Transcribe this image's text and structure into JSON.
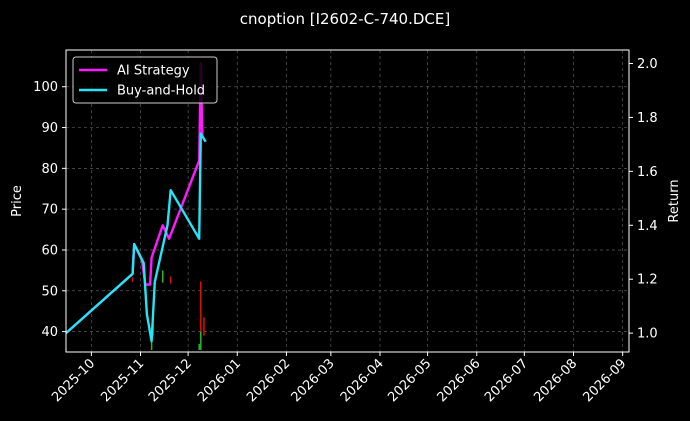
{
  "chart_data": {
    "type": "line",
    "title": "cnoption [I2602-C-740.DCE]",
    "ylabel_left": "Price",
    "ylabel_right": "Return",
    "background": "#000000",
    "grid": true,
    "legend_position": "top-left",
    "x_ticks": [
      "2025-10",
      "2025-11",
      "2025-12",
      "2026-01",
      "2026-02",
      "2026-03",
      "2026-04",
      "2026-05",
      "2026-06",
      "2026-07",
      "2026-08",
      "2026-09"
    ],
    "xlim": [
      "2025-09-15",
      "2026-09-05"
    ],
    "left_axis": {
      "ylim": [
        35,
        109
      ],
      "ticks": [
        40,
        50,
        60,
        70,
        80,
        90,
        100
      ]
    },
    "right_axis": {
      "ylim": [
        0.93,
        2.05
      ],
      "ticks": [
        1.0,
        1.2,
        1.4,
        1.6,
        1.8,
        2.0
      ]
    },
    "series": [
      {
        "name": "AI Strategy",
        "color": "#ff1aff",
        "axis": "right",
        "points": [
          [
            "2025-09-15",
            1.0
          ],
          [
            "2025-10-27",
            1.22
          ],
          [
            "2025-10-28",
            1.33
          ],
          [
            "2025-11-02",
            1.27
          ],
          [
            "2025-11-04",
            1.18
          ],
          [
            "2025-11-07",
            1.18
          ],
          [
            "2025-11-08",
            1.28
          ],
          [
            "2025-11-15",
            1.4
          ],
          [
            "2025-11-19",
            1.35
          ],
          [
            "2025-12-08",
            1.64
          ],
          [
            "2025-12-09",
            2.0
          ],
          [
            "2025-12-10",
            1.73
          ],
          [
            "2025-12-12",
            1.71
          ]
        ]
      },
      {
        "name": "Buy-and-Hold",
        "color": "#22e5f5",
        "axis": "right",
        "points": [
          [
            "2025-09-15",
            1.0
          ],
          [
            "2025-10-27",
            1.22
          ],
          [
            "2025-10-28",
            1.33
          ],
          [
            "2025-11-03",
            1.26
          ],
          [
            "2025-11-05",
            1.07
          ],
          [
            "2025-11-08",
            0.97
          ],
          [
            "2025-11-10",
            1.19
          ],
          [
            "2025-11-18",
            1.4
          ],
          [
            "2025-11-20",
            1.53
          ],
          [
            "2025-12-08",
            1.35
          ],
          [
            "2025-12-09",
            1.74
          ],
          [
            "2025-12-10",
            1.73
          ],
          [
            "2025-12-12",
            1.71
          ]
        ]
      }
    ],
    "signal_bars": [
      {
        "color": "#dd1111",
        "axis": "left",
        "items": [
          [
            "2025-10-27",
            52.2,
            53.3
          ],
          [
            "2025-11-09",
            39.0,
            42.0
          ],
          [
            "2025-11-15",
            52.0,
            54.0
          ],
          [
            "2025-11-20",
            51.8,
            53.5
          ],
          [
            "2025-12-09",
            39.0,
            52.3
          ],
          [
            "2025-12-11",
            39.0,
            43.5
          ]
        ]
      },
      {
        "color": "#22bb22",
        "axis": "left",
        "items": [
          [
            "2025-11-08",
            35.5,
            41.0
          ],
          [
            "2025-11-15",
            52.0,
            55.0
          ],
          [
            "2025-12-08",
            35.5,
            37.0
          ],
          [
            "2025-12-09",
            35.5,
            40.0
          ]
        ]
      }
    ]
  }
}
